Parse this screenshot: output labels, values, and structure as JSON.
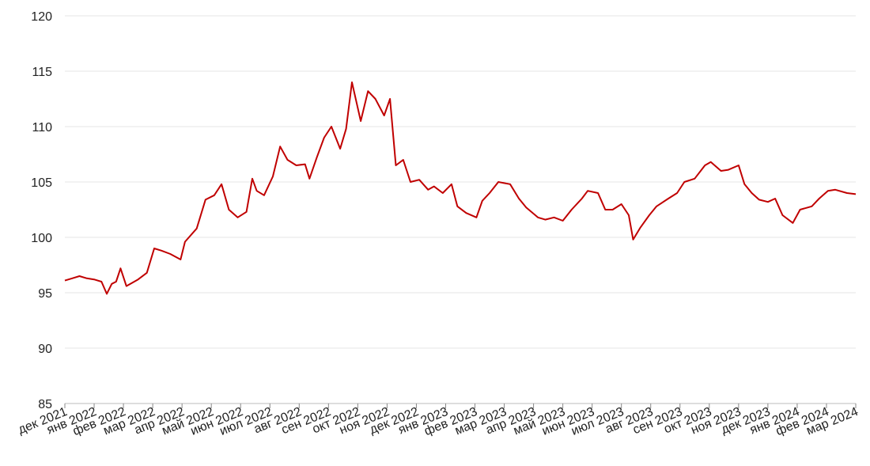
{
  "chart_data": {
    "type": "line",
    "xlim": [
      0,
      27
    ],
    "xticks": [
      {
        "value": 0,
        "label": "дек 2021"
      },
      {
        "value": 1,
        "label": "янв 2022"
      },
      {
        "value": 2,
        "label": "фев 2022"
      },
      {
        "value": 3,
        "label": "мар 2022"
      },
      {
        "value": 4,
        "label": "апр 2022"
      },
      {
        "value": 5,
        "label": "май 2022"
      },
      {
        "value": 6,
        "label": "июн 2022"
      },
      {
        "value": 7,
        "label": "июл 2022"
      },
      {
        "value": 8,
        "label": "авг 2022"
      },
      {
        "value": 9,
        "label": "сен 2022"
      },
      {
        "value": 10,
        "label": "окт 2022"
      },
      {
        "value": 11,
        "label": "ноя 2022"
      },
      {
        "value": 12,
        "label": "дек 2022"
      },
      {
        "value": 13,
        "label": "янв 2023"
      },
      {
        "value": 14,
        "label": "фев 2023"
      },
      {
        "value": 15,
        "label": "мар 2023"
      },
      {
        "value": 16,
        "label": "апр 2023"
      },
      {
        "value": 17,
        "label": "май 2023"
      },
      {
        "value": 18,
        "label": "июн 2023"
      },
      {
        "value": 19,
        "label": "июл 2023"
      },
      {
        "value": 20,
        "label": "авг 2023"
      },
      {
        "value": 21,
        "label": "сен 2023"
      },
      {
        "value": 22,
        "label": "окт 2023"
      },
      {
        "value": 23,
        "label": "ноя 2023"
      },
      {
        "value": 24,
        "label": "дек 2023"
      },
      {
        "value": 25,
        "label": "янв 2024"
      },
      {
        "value": 26,
        "label": "фев 2024"
      },
      {
        "value": 27,
        "label": "мар 2024"
      }
    ],
    "ylim": [
      85,
      120
    ],
    "yticks": [
      85,
      90,
      95,
      100,
      105,
      110,
      115,
      120
    ],
    "grid": true,
    "x": [
      0,
      0.25,
      0.5,
      0.75,
      1,
      1.25,
      1.43,
      1.6,
      1.75,
      1.9,
      2.1,
      2.5,
      2.8,
      3.05,
      3.3,
      3.6,
      3.95,
      4.1,
      4.5,
      4.8,
      5.1,
      5.35,
      5.6,
      5.9,
      6.2,
      6.4,
      6.55,
      6.8,
      7.1,
      7.35,
      7.6,
      7.9,
      8.2,
      8.35,
      8.6,
      8.85,
      9.1,
      9.4,
      9.6,
      9.8,
      10.1,
      10.35,
      10.6,
      10.9,
      11.1,
      11.3,
      11.55,
      11.8,
      12.1,
      12.4,
      12.6,
      12.9,
      13.2,
      13.4,
      13.7,
      14.05,
      14.25,
      14.5,
      14.8,
      15.2,
      15.5,
      15.75,
      16.15,
      16.4,
      16.7,
      17.0,
      17.3,
      17.65,
      17.85,
      18.2,
      18.45,
      18.7,
      19.0,
      19.25,
      19.4,
      19.65,
      19.95,
      20.2,
      20.6,
      20.9,
      21.15,
      21.5,
      21.85,
      22.05,
      22.4,
      22.65,
      23.0,
      23.2,
      23.45,
      23.7,
      24.0,
      24.25,
      24.5,
      24.85,
      25.1,
      25.5,
      25.75,
      26.05,
      26.3,
      26.7,
      27
    ],
    "series": [
      {
        "color": "#c00000",
        "values": [
          96.1,
          96.3,
          96.5,
          96.3,
          96.2,
          96.0,
          94.9,
          95.8,
          96.0,
          97.2,
          95.6,
          96.2,
          96.8,
          99.0,
          98.8,
          98.5,
          98.0,
          99.6,
          100.8,
          103.4,
          103.8,
          104.8,
          102.5,
          101.8,
          102.3,
          105.3,
          104.2,
          103.8,
          105.5,
          108.2,
          107.0,
          106.5,
          106.6,
          105.3,
          107.2,
          109.0,
          110.0,
          108.0,
          109.8,
          114.0,
          110.5,
          113.2,
          112.5,
          111.0,
          112.5,
          106.5,
          107.0,
          105.0,
          105.2,
          104.3,
          104.6,
          104.0,
          104.8,
          102.8,
          102.2,
          101.8,
          103.3,
          104.0,
          105.0,
          104.8,
          103.5,
          102.7,
          101.8,
          101.6,
          101.8,
          101.5,
          102.5,
          103.5,
          104.2,
          104.0,
          102.5,
          102.5,
          103.0,
          102.0,
          99.8,
          100.9,
          102.0,
          102.8,
          103.5,
          104.0,
          105.0,
          105.3,
          106.5,
          106.8,
          106.0,
          106.1,
          106.5,
          104.8,
          104.0,
          103.4,
          103.2,
          103.5,
          102.0,
          101.3,
          102.5,
          102.8,
          103.5,
          104.2,
          104.3,
          104.0,
          103.9
        ]
      }
    ]
  }
}
